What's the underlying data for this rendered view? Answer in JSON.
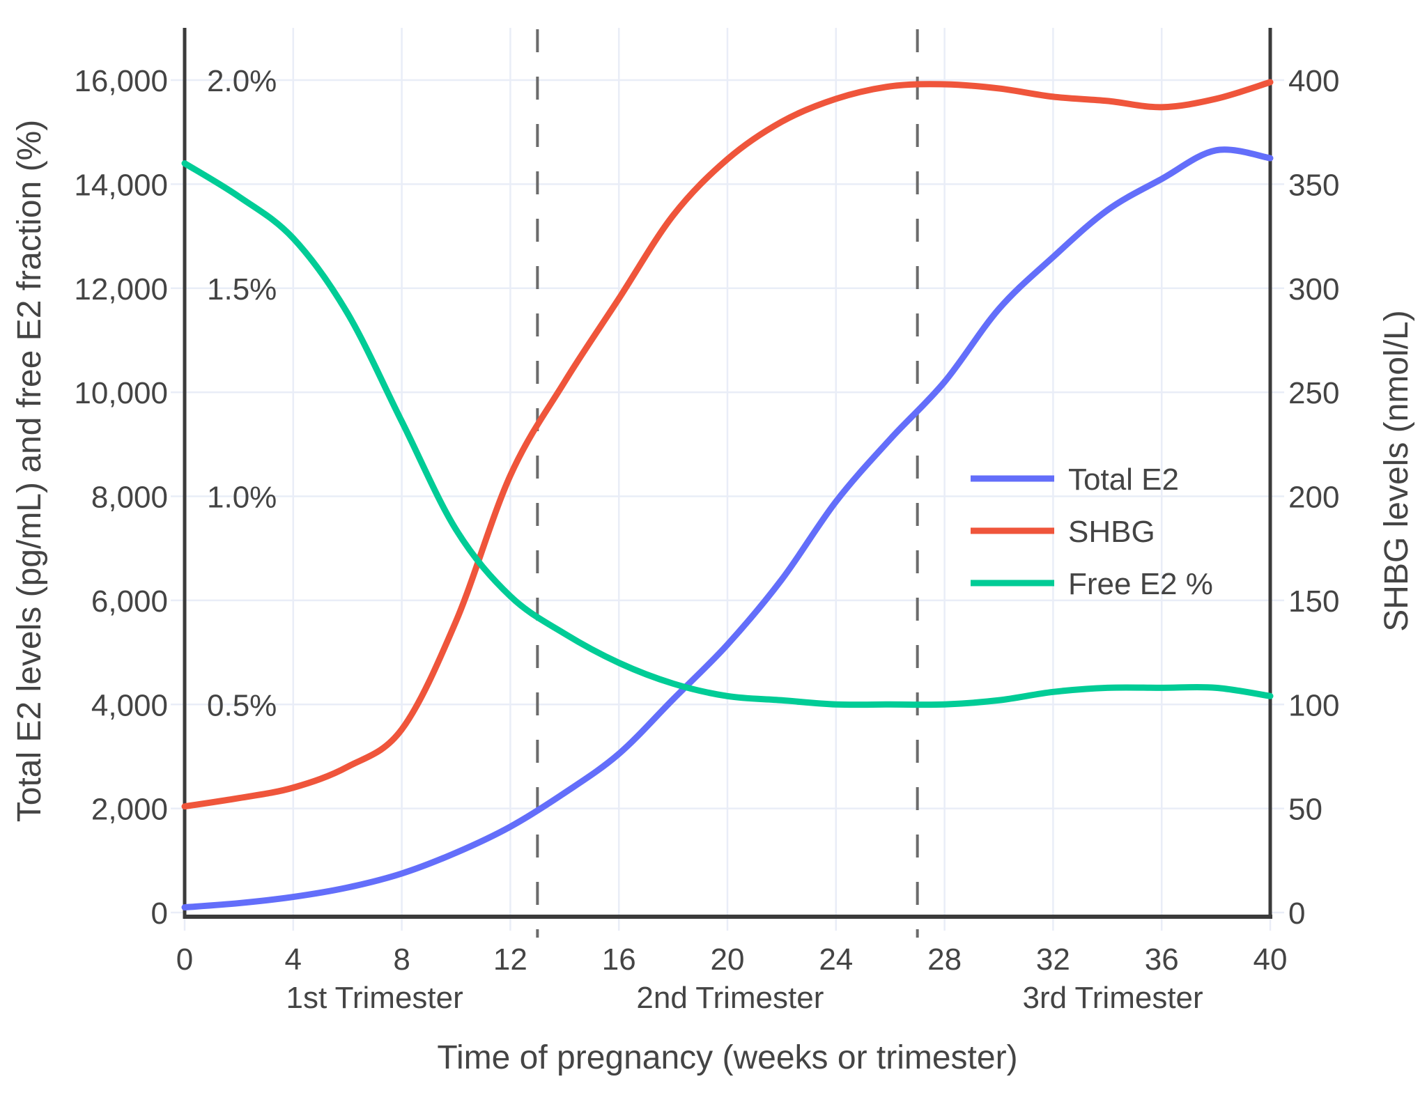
{
  "chart_data": {
    "type": "line",
    "title": "",
    "xlabel": "Time of pregnancy (weeks or trimester)",
    "ylabel_left": "Total E2 levels (pg/mL) and free E2 fraction (%)",
    "ylabel_right": "SHBG levels (nmol/L)",
    "x_weeks": [
      0,
      2,
      4,
      6,
      8,
      10,
      12,
      14,
      16,
      18,
      20,
      22,
      24,
      26,
      28,
      30,
      32,
      34,
      36,
      38,
      40
    ],
    "series": [
      {
        "name": "Total E2",
        "color": "#636EFA",
        "axis": "left",
        "unit": "pg/mL",
        "values": [
          100,
          180,
          300,
          480,
          750,
          1150,
          1650,
          2300,
          3050,
          4100,
          5150,
          6400,
          7900,
          9100,
          10200,
          11600,
          12600,
          13500,
          14100,
          14650,
          14500
        ]
      },
      {
        "name": "SHBG",
        "color": "#EF553B",
        "axis": "right",
        "unit": "nmol/L",
        "values": [
          51,
          55,
          60,
          70,
          88,
          140,
          210,
          255,
          295,
          335,
          362,
          380,
          391,
          397,
          398,
          396,
          392,
          390,
          387,
          391,
          399
        ]
      },
      {
        "name": "Free E2 %",
        "color": "#00CC96",
        "axis": "left-percent",
        "unit": "%",
        "values": [
          1.8,
          1.72,
          1.62,
          1.44,
          1.18,
          0.92,
          0.76,
          0.67,
          0.6,
          0.55,
          0.52,
          0.51,
          0.5,
          0.5,
          0.5,
          0.51,
          0.53,
          0.54,
          0.54,
          0.54,
          0.52
        ]
      }
    ],
    "x_axis": {
      "range": [
        0,
        40
      ],
      "tick_values": [
        0,
        4,
        8,
        12,
        16,
        20,
        24,
        28,
        32,
        36,
        40
      ],
      "tick_labels": [
        "0",
        "4",
        "8",
        "12",
        "16",
        "20",
        "24",
        "28",
        "32",
        "36",
        "40"
      ]
    },
    "y_left_axis": {
      "range": [
        0,
        17000
      ],
      "tick_values": [
        0,
        2000,
        4000,
        6000,
        8000,
        10000,
        12000,
        14000,
        16000
      ],
      "tick_labels": [
        "0",
        "2,000",
        "4,000",
        "6,000",
        "8,000",
        "10,000",
        "12,000",
        "14,000",
        "16,000"
      ]
    },
    "y_left_percent_labels": {
      "values": [
        4000,
        8000,
        12000,
        16000
      ],
      "labels": [
        "0.5%",
        "1.0%",
        "1.5%",
        "2.0%"
      ]
    },
    "y_right_axis": {
      "range": [
        0,
        425
      ],
      "tick_values": [
        0,
        50,
        100,
        150,
        200,
        250,
        300,
        350,
        400
      ],
      "tick_labels": [
        "0",
        "50",
        "100",
        "150",
        "200",
        "250",
        "300",
        "350",
        "400"
      ],
      "left_axis_units_per_right_unit": 40
    },
    "percent_to_left_units": 8000,
    "dividers": {
      "weeks": [
        13,
        27
      ],
      "style": "dashed"
    },
    "trimester_labels": [
      {
        "label": "1st Trimester",
        "week": 7.0
      },
      {
        "label": "2nd Trimester",
        "week": 20.1
      },
      {
        "label": "3rd Trimester",
        "week": 34.2
      }
    ],
    "legend": {
      "position": "middle-right",
      "entries": [
        "Total E2",
        "SHBG",
        "Free E2 %"
      ]
    },
    "grid": true,
    "colors": {
      "background": "#FFFFFF",
      "gridline": "#E9EDF7",
      "axis_line": "#3B3B3B",
      "text": "#444444",
      "divider": "#6B6B6B",
      "total_e2": "#636EFA",
      "shbg": "#EF553B",
      "free_e2": "#00CC96"
    }
  }
}
